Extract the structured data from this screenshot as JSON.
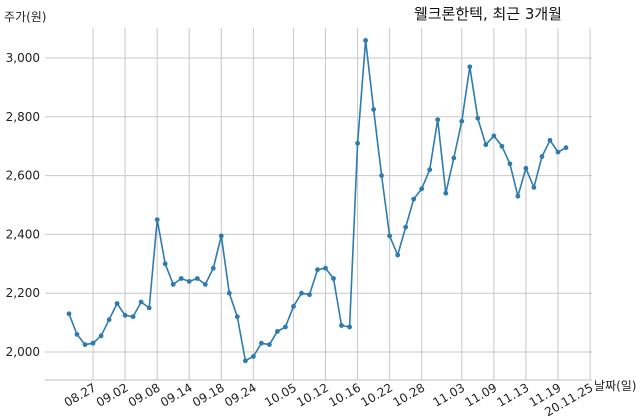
{
  "chart_data": {
    "type": "line",
    "title": "웰크론한텍, 최근 3개월",
    "xlabel": "날짜(일)",
    "ylabel": "주가(원)",
    "ylim": [
      1910,
      3130
    ],
    "yticks": [
      2000,
      2200,
      2400,
      2600,
      2800,
      3000
    ],
    "ytick_labels": [
      "2,000",
      "2,200",
      "2,400",
      "2,600",
      "2,800",
      "3,000"
    ],
    "grid": true,
    "xticks": [
      {
        "label": "08.27",
        "index": 3
      },
      {
        "label": "09.02",
        "index": 7
      },
      {
        "label": "09.08",
        "index": 11
      },
      {
        "label": "09.14",
        "index": 15
      },
      {
        "label": "09.18",
        "index": 19
      },
      {
        "label": "09.24",
        "index": 23
      },
      {
        "label": "10.05",
        "index": 28
      },
      {
        "label": "10.12",
        "index": 32
      },
      {
        "label": "10.16",
        "index": 36
      },
      {
        "label": "10.22",
        "index": 40
      },
      {
        "label": "10.28",
        "index": 44
      },
      {
        "label": "11.03",
        "index": 49
      },
      {
        "label": "11.09",
        "index": 53
      },
      {
        "label": "11.13",
        "index": 57
      },
      {
        "label": "11.19",
        "index": 61
      },
      {
        "label": "20.11.25",
        "index": 65
      }
    ],
    "series": [
      {
        "values": [
          2130,
          2060,
          2025,
          2030,
          2055,
          2110,
          2165,
          2125,
          2120,
          2170,
          2150,
          2450,
          2300,
          2230,
          2250,
          2240,
          2250,
          2230,
          2285,
          2395,
          2200,
          2120,
          1970,
          1985,
          2030,
          2025,
          2070,
          2085,
          2155,
          2200,
          2195,
          2280,
          2285,
          2250,
          2090,
          2085,
          2710,
          3060,
          2825,
          2600,
          2395,
          2330,
          2425,
          2520,
          2555,
          2620,
          2790,
          2540,
          2660,
          2785,
          2970,
          2795,
          2705,
          2735,
          2700,
          2640,
          2530,
          2625,
          2560,
          2665,
          2720,
          2680,
          2695
        ]
      }
    ]
  }
}
